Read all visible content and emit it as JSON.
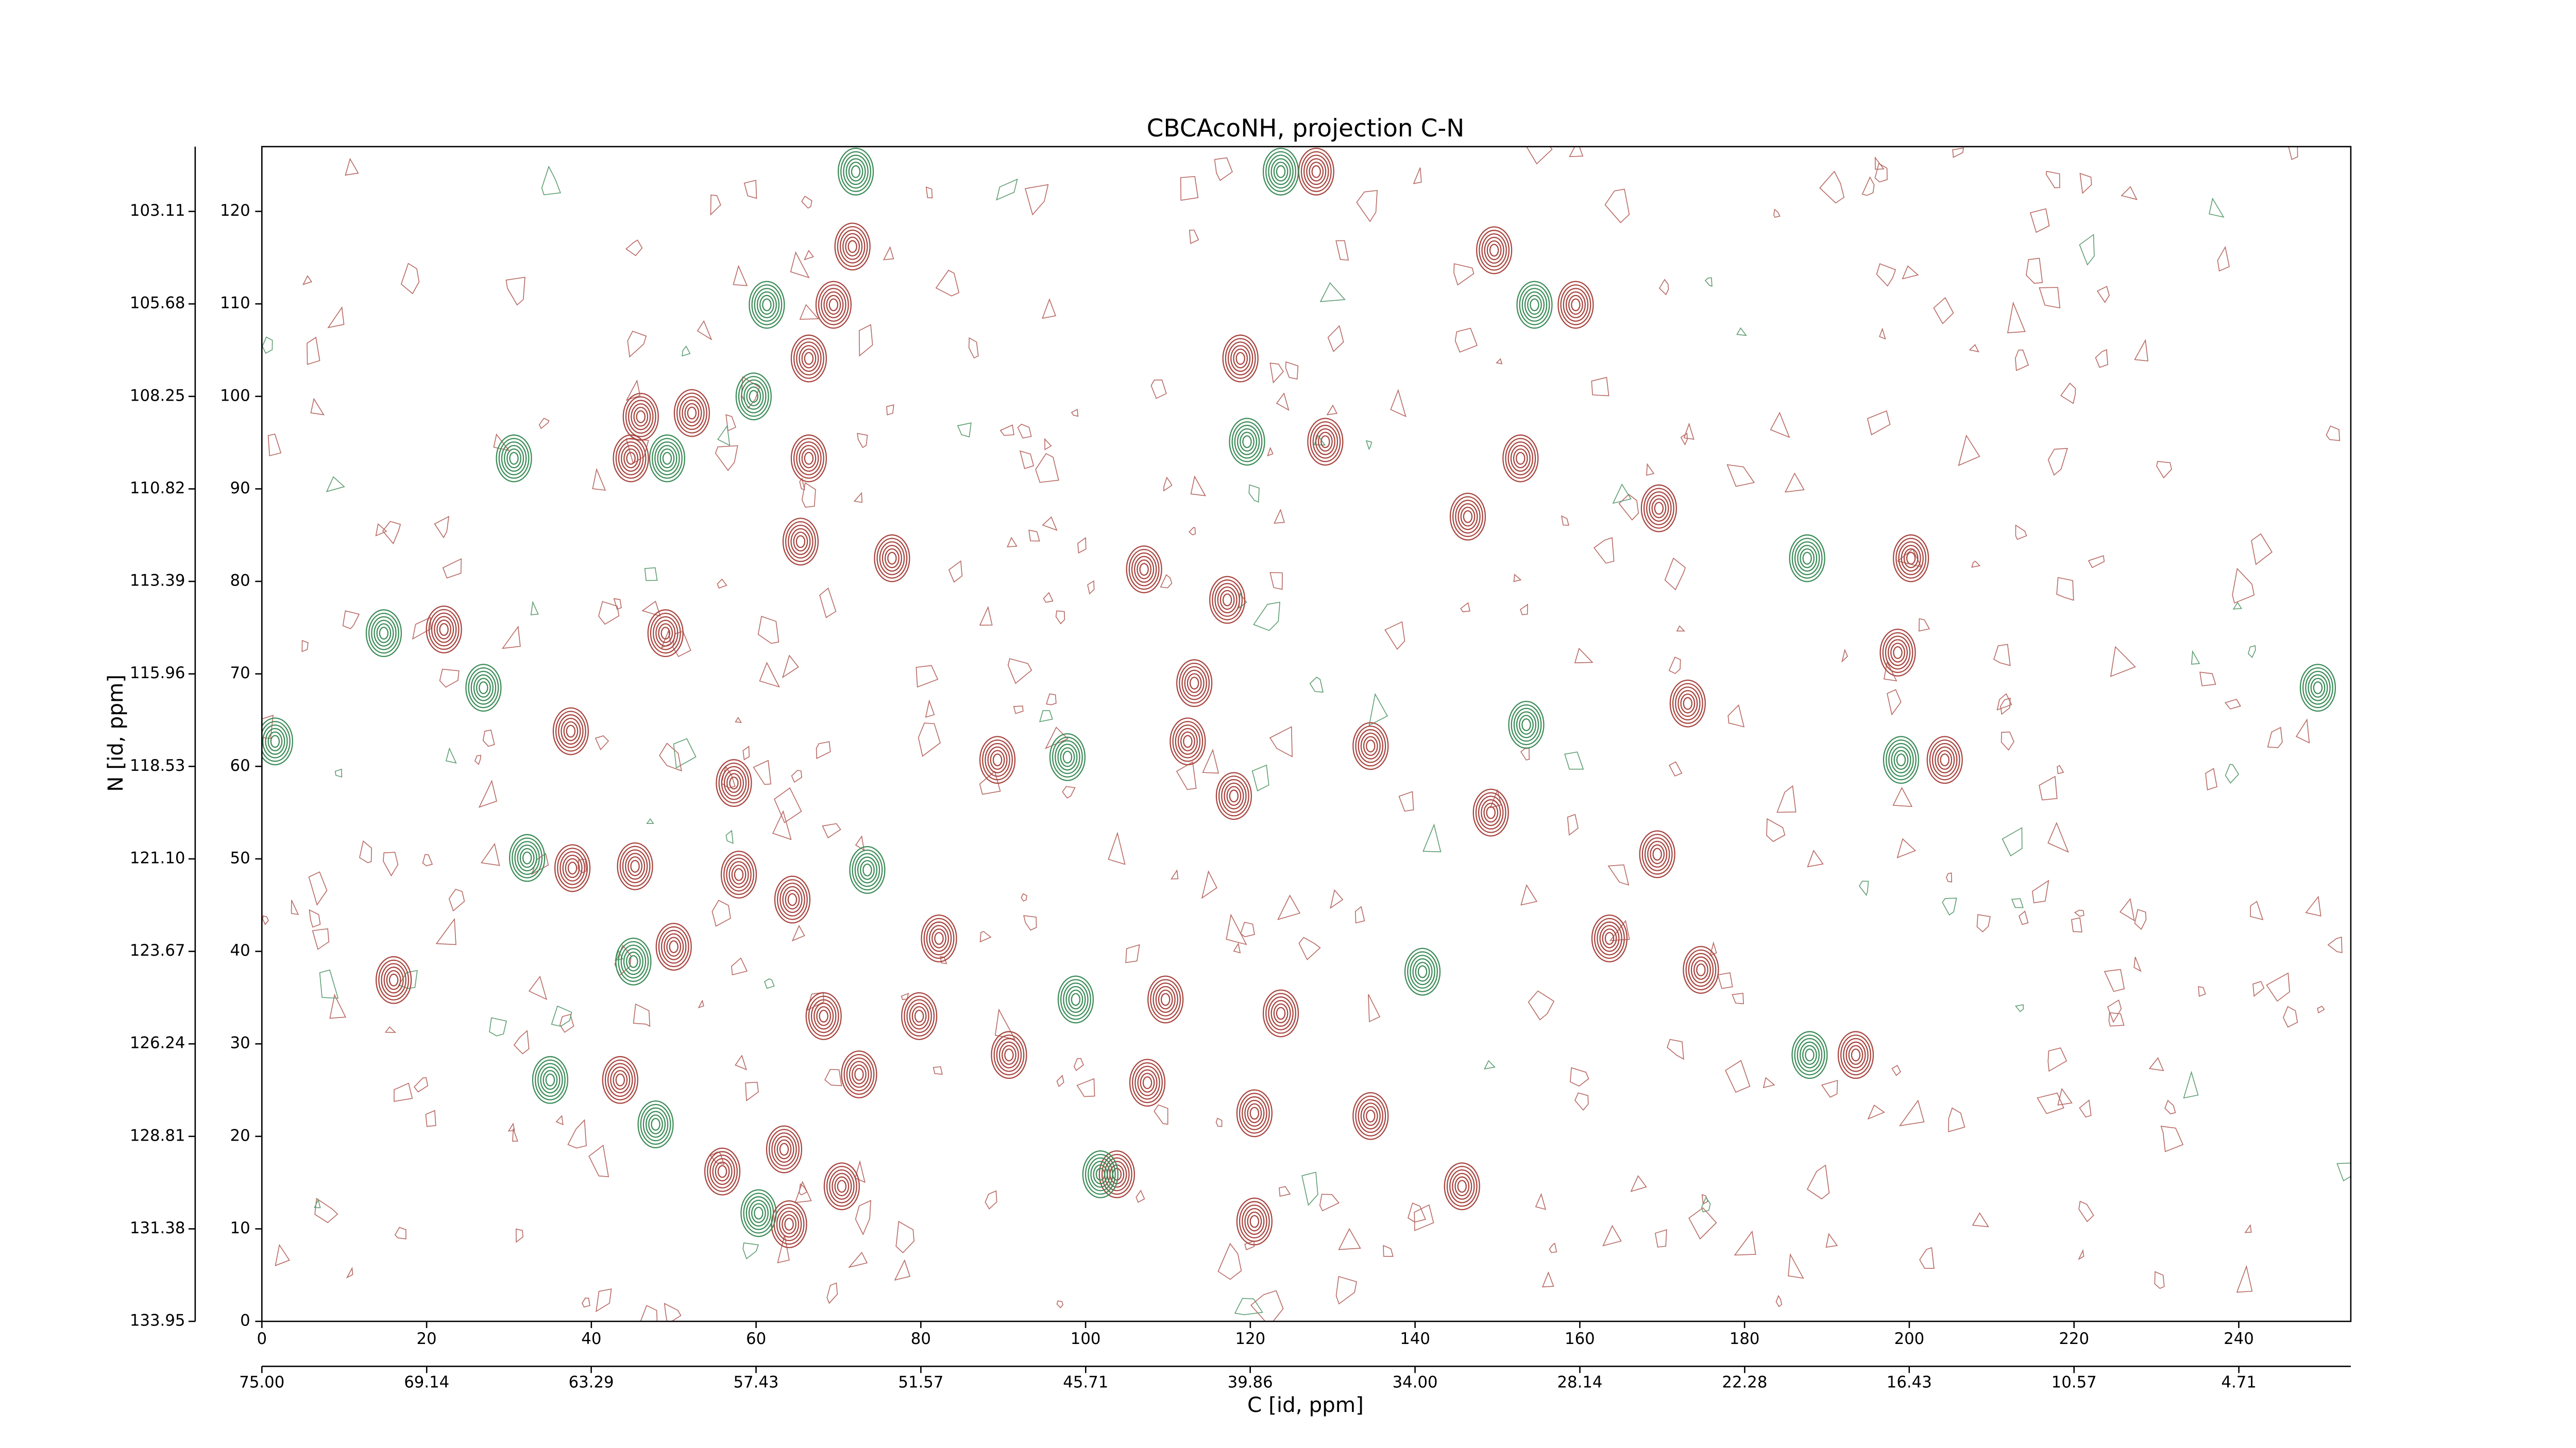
{
  "chart_data": {
    "type": "contour",
    "title": "CBCAcoNH, projection C-N",
    "xlabel": "C [id, ppm]",
    "ylabel": "N [id, ppm]",
    "xlim": [
      0,
      253.6
    ],
    "ylim": [
      0,
      127
    ],
    "xticks": [
      0,
      20,
      40,
      60,
      80,
      100,
      120,
      140,
      160,
      180,
      200,
      220,
      240
    ],
    "yticks": [
      0,
      10,
      20,
      30,
      40,
      50,
      60,
      70,
      80,
      90,
      100,
      110,
      120
    ],
    "x2lim": [
      75,
      0.73
    ],
    "x2ticks": [
      {
        "value": 75,
        "label": "75.00"
      },
      69.14,
      63.29,
      57.43,
      51.57,
      45.71,
      39.86,
      {
        "value": 34,
        "label": "34.00"
      },
      28.14,
      22.28,
      16.43,
      10.57,
      4.71
    ],
    "y2lim": [
      133.95,
      101.31
    ],
    "y2ticks": [
      103.11,
      105.68,
      108.25,
      110.82,
      113.39,
      115.96,
      118.53,
      {
        "value": 121.1,
        "label": "121.10"
      },
      123.67,
      126.24,
      128.81,
      131.38,
      133.95
    ],
    "series": [
      {
        "color": "#a8453f",
        "x": [
          128,
          71.7,
          149.6,
          69.4,
          159.5,
          66.4,
          118.8,
          46,
          52.2,
          129.1,
          66.4,
          44.8,
          152.8,
          146.4,
          169.6,
          65.4,
          76.5,
          107.1,
          200.2,
          117.2,
          22.1,
          49,
          198.6,
          113.2,
          173.1,
          37.5,
          134.6,
          89.3,
          204.3,
          112.4,
          118,
          57.3,
          149.2,
          169.4,
          37.7,
          45.3,
          57.9,
          64.4,
          82.2,
          50,
          163.6,
          16,
          109.7,
          123.7,
          68.2,
          79.8,
          90.7,
          193.5,
          43.5,
          72.5,
          107.5,
          120.5,
          134.6,
          63.4,
          55.9,
          103.8,
          70.4,
          145.7,
          64,
          120.5,
          174.7
        ],
        "y": [
          124.3,
          116.2,
          115.8,
          109.9,
          109.9,
          104.1,
          104.1,
          97.8,
          98.2,
          95.1,
          93.3,
          93.3,
          93.3,
          87,
          87.9,
          84.3,
          82.5,
          81.3,
          82.5,
          78,
          74.8,
          74.4,
          72.3,
          69,
          66.8,
          63.8,
          62.2,
          60.7,
          60.7,
          62.7,
          56.8,
          58.2,
          55,
          50.5,
          49,
          49.2,
          48.3,
          45.6,
          41.4,
          40.5,
          41.4,
          36.9,
          34.8,
          33.3,
          33,
          33,
          28.8,
          28.8,
          26.1,
          26.7,
          25.8,
          22.5,
          22.2,
          18.6,
          16.2,
          15.9,
          14.6,
          14.6,
          10.5,
          10.8,
          38
        ]
      },
      {
        "color": "#3c8c58",
        "x": [
          72.1,
          123.7,
          61.3,
          154.5,
          59.7,
          49.2,
          30.6,
          119.6,
          187.6,
          14.8,
          26.9,
          249.6,
          1.6,
          97.8,
          199,
          153.5,
          45.1,
          98.8,
          187.9,
          35,
          47.8,
          60.3,
          101.8,
          140.9,
          32.2,
          73.5
        ],
        "y": [
          124.3,
          124.3,
          109.9,
          109.9,
          100,
          93.3,
          93.3,
          95.1,
          82.5,
          74.4,
          68.5,
          68.5,
          62.7,
          61,
          60.7,
          64.5,
          38.9,
          34.8,
          28.8,
          26.1,
          21.3,
          11.7,
          15.9,
          37.8,
          50.1,
          48.8
        ]
      }
    ]
  }
}
